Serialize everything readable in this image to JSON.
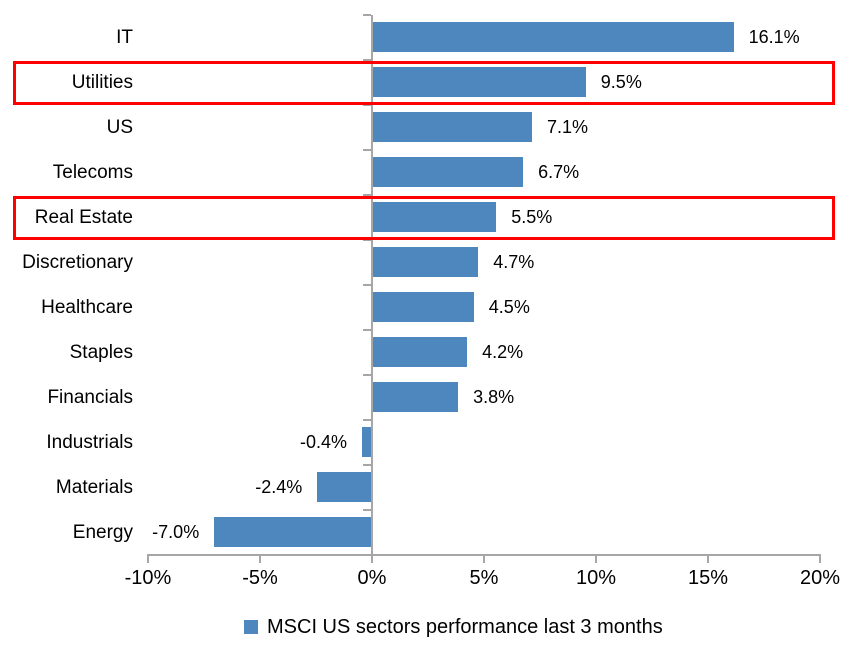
{
  "chart_data": {
    "type": "bar",
    "orientation": "horizontal",
    "title": "",
    "categories": [
      "IT",
      "Utilities",
      "US",
      "Telecoms",
      "Real Estate",
      "Discretionary",
      "Healthcare",
      "Staples",
      "Financials",
      "Industrials",
      "Materials",
      "Energy"
    ],
    "values": [
      16.1,
      9.5,
      7.1,
      6.7,
      5.5,
      4.7,
      4.5,
      4.2,
      3.8,
      -0.4,
      -2.4,
      -7.0
    ],
    "value_labels": [
      "16.1%",
      "9.5%",
      "7.1%",
      "6.7%",
      "5.5%",
      "4.7%",
      "4.5%",
      "4.2%",
      "3.8%",
      "-0.4%",
      "-2.4%",
      "-7.0%"
    ],
    "x_tick_values": [
      -10,
      -5,
      0,
      5,
      10,
      15,
      20
    ],
    "x_tick_labels": [
      "-10%",
      "-5%",
      "0%",
      "5%",
      "10%",
      "15%",
      "20%"
    ],
    "xlim": [
      -10,
      20
    ],
    "grid": false,
    "legend": "MSCI US sectors performance last 3 months",
    "legend_position": "bottom",
    "highlighted_categories": [
      "Utilities",
      "Real Estate"
    ],
    "colors": {
      "bar": "#4e86be",
      "highlight_border": "#ff0000",
      "axis": "#a6a6a6",
      "text": "#000000"
    }
  }
}
